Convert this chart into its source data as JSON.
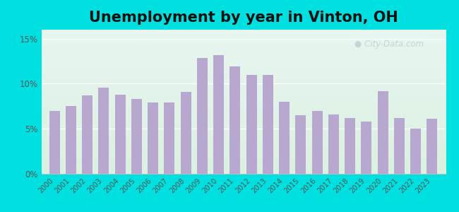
{
  "title": "Unemployment by year in Vinton, OH",
  "years": [
    2000,
    2001,
    2002,
    2003,
    2004,
    2005,
    2006,
    2007,
    2008,
    2009,
    2010,
    2011,
    2012,
    2013,
    2014,
    2015,
    2016,
    2017,
    2018,
    2019,
    2020,
    2021,
    2022,
    2023
  ],
  "values": [
    7.0,
    7.5,
    8.7,
    9.6,
    8.8,
    8.3,
    7.9,
    7.9,
    9.1,
    12.9,
    13.2,
    11.9,
    11.0,
    11.0,
    8.0,
    6.5,
    7.0,
    6.6,
    6.2,
    5.8,
    9.2,
    6.2,
    5.0,
    6.1
  ],
  "bar_color": "#b8a8d0",
  "yticks": [
    0,
    5,
    10,
    15
  ],
  "ytick_labels": [
    "0%",
    "5%",
    "10%",
    "15%"
  ],
  "ylim": [
    0,
    16
  ],
  "bg_outer": "#00e0e0",
  "bg_gradient_top": "#e8f5f0",
  "bg_gradient_bottom": "#daf0e0",
  "title_fontsize": 15,
  "watermark_text": "City-Data.com",
  "watermark_color": "#b0bec5",
  "watermark_alpha": 0.6
}
